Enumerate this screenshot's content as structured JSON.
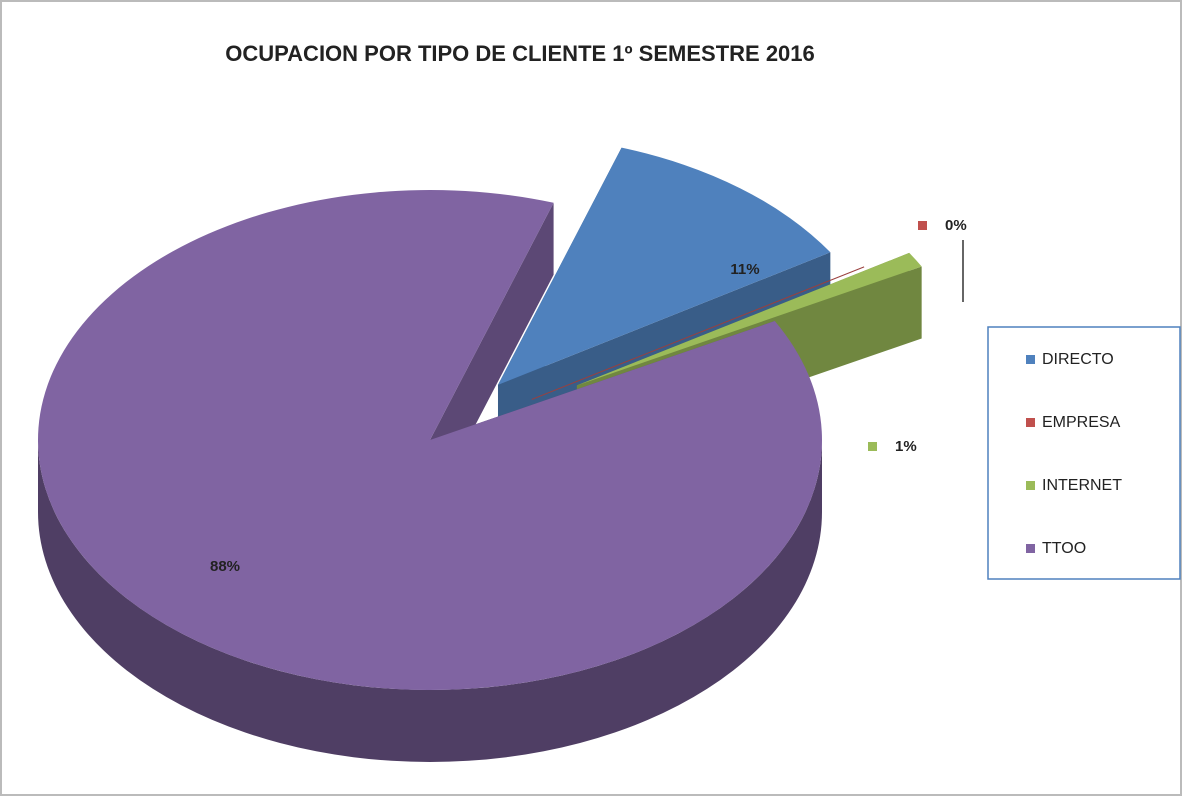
{
  "chart_data": {
    "type": "pie",
    "title": "OCUPACION POR TIPO DE CLIENTE 1º SEMESTRE 2016",
    "categories": [
      "DIRECTO",
      "EMPRESA",
      "INTERNET",
      "TTOO"
    ],
    "values": [
      11,
      0,
      1,
      88
    ],
    "value_labels": [
      "11%",
      "0%",
      "1%",
      "88%"
    ],
    "colors": [
      "#4f81bd",
      "#c0504d",
      "#9bbb59",
      "#8064a2"
    ],
    "legend": "right"
  }
}
